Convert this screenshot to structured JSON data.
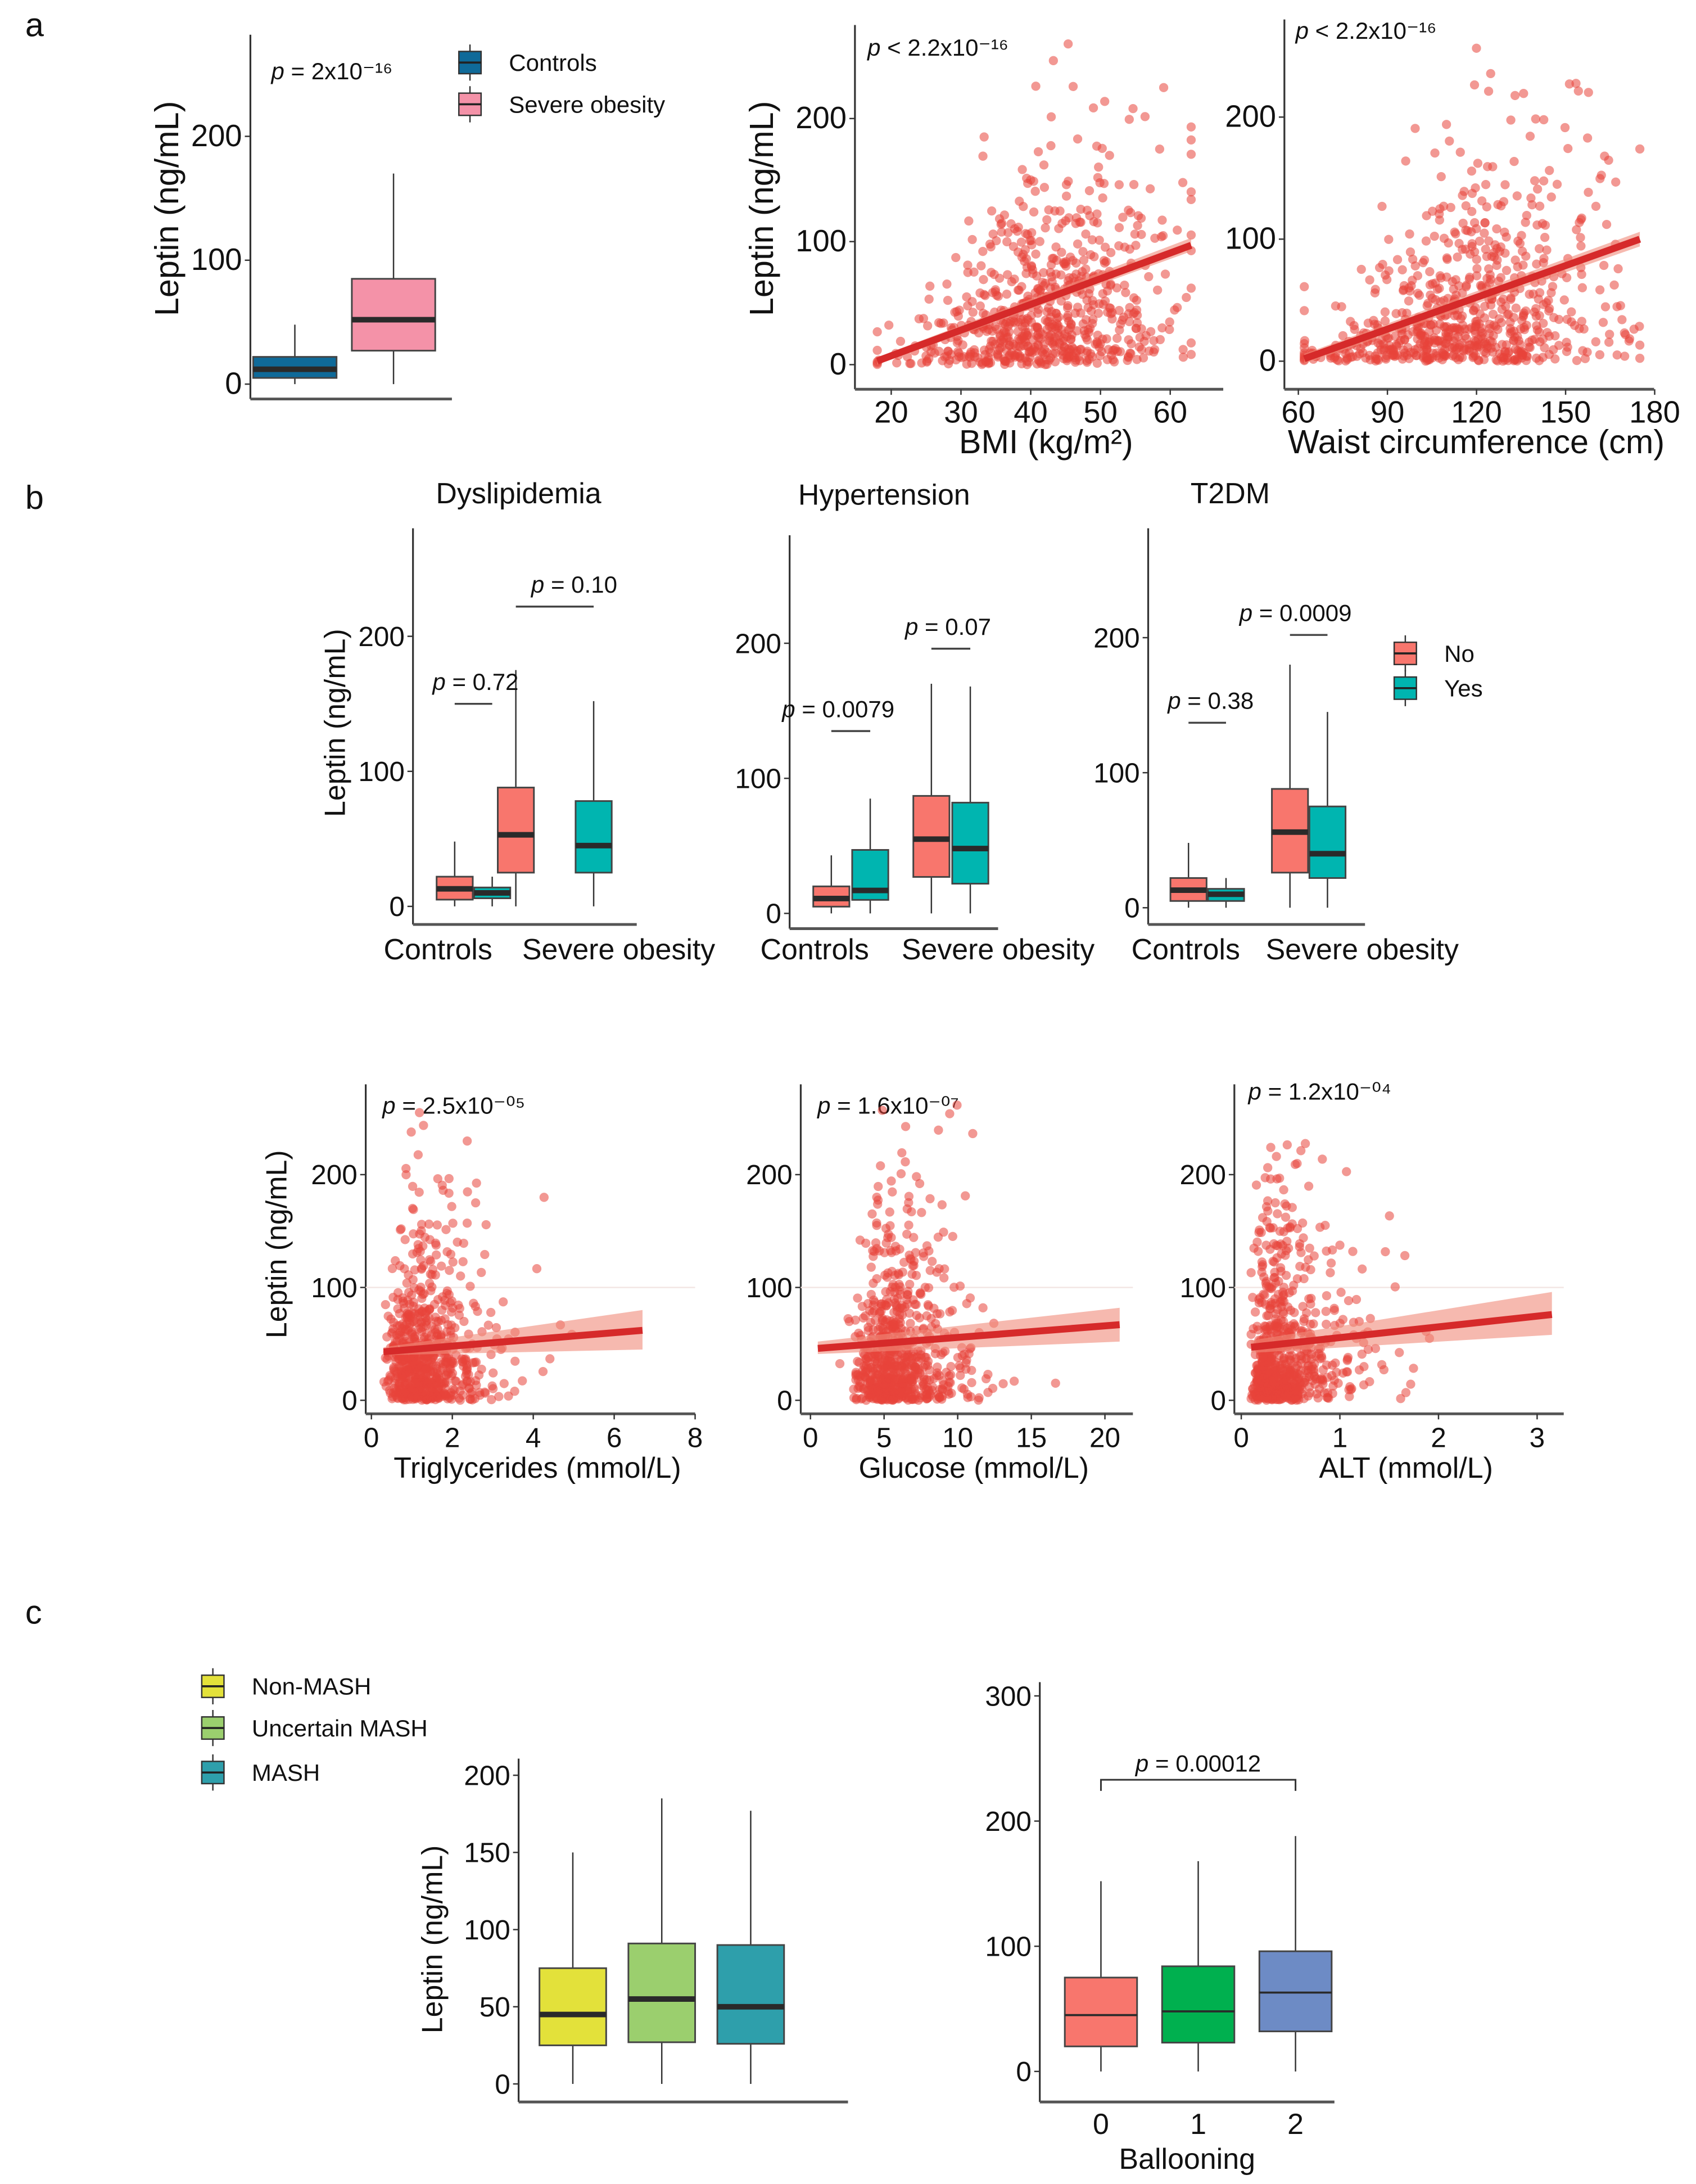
{
  "panel_labels": [
    "a",
    "b",
    "c"
  ],
  "chart_data": [
    {
      "panel": "a",
      "type": "box",
      "ylabel": "Leptin (ng/mL)",
      "yticks": [
        0,
        100,
        200
      ],
      "ylim": [
        -12,
        282
      ],
      "annotation": {
        "p": "p",
        "text": " = 2x10⁻¹⁶"
      },
      "legend": [
        {
          "label": "Controls",
          "color": "#0F6A99"
        },
        {
          "label": "Severe obesity",
          "color": "#F492A8"
        }
      ],
      "boxes": [
        {
          "group": "Controls",
          "color": "#0F6A99",
          "q1": 5,
          "median": 12,
          "q3": 22,
          "whisker_low": 0,
          "whisker_high": 48
        },
        {
          "group": "Severe obesity",
          "color": "#F492A8",
          "q1": 27,
          "median": 52,
          "q3": 85,
          "whisker_low": 0,
          "whisker_high": 170
        }
      ]
    },
    {
      "panel": "a",
      "type": "scatter",
      "ylabel": "Leptin (ng/mL)",
      "xlabel": "BMI (kg/m²)",
      "xticks": [
        20,
        30,
        40,
        50,
        60
      ],
      "yticks": [
        0,
        100,
        200
      ],
      "xlim": [
        14.8,
        67.6
      ],
      "ylim": [
        -20,
        276
      ],
      "annotation": {
        "p": "p",
        "text": " < 2.2x10⁻¹⁶"
      },
      "fit": {
        "x": [
          18,
          63
        ],
        "y": [
          3,
          97
        ],
        "ci_low": [
          0,
          92
        ],
        "ci_high": [
          6,
          103
        ]
      },
      "point_color": "#E8443A"
    },
    {
      "panel": "a",
      "type": "scatter",
      "ylabel": "",
      "xlabel": "Waist circumference (cm)",
      "xticks": [
        60,
        90,
        120,
        150,
        180
      ],
      "yticks": [
        0,
        100,
        200
      ],
      "xlim": [
        55.3,
        179.8
      ],
      "ylim": [
        -23,
        280
      ],
      "annotation": {
        "p": "p",
        "text": " < 2.2x10⁻¹⁶"
      },
      "fit": {
        "x": [
          62,
          175
        ],
        "y": [
          2,
          100
        ],
        "ci_low": [
          -2,
          94
        ],
        "ci_high": [
          6,
          106
        ]
      },
      "point_color": "#E8443A"
    },
    {
      "panel": "b",
      "type": "box",
      "title": "Dyslipidemia",
      "ylabel": "Leptin (ng/mL)",
      "yticks": [
        0,
        100,
        200
      ],
      "ylim": [
        -13.4,
        280
      ],
      "categories": [
        "Controls",
        "Severe obesity"
      ],
      "boxes": [
        {
          "category": "Controls",
          "subgroup": "No",
          "color": "#F8766D",
          "q1": 5,
          "median": 13,
          "q3": 22,
          "whisker_low": 0,
          "whisker_high": 48
        },
        {
          "category": "Controls",
          "subgroup": "Yes",
          "color": "#00B5B0",
          "q1": 6,
          "median": 10,
          "q3": 14,
          "whisker_low": 0,
          "whisker_high": 22
        },
        {
          "category": "Severe obesity",
          "subgroup": "No",
          "color": "#F8766D",
          "q1": 25,
          "median": 53,
          "q3": 88,
          "whisker_low": 0,
          "whisker_high": 175
        },
        {
          "category": "Severe obesity",
          "subgroup": "Yes",
          "color": "#00B5B0",
          "q1": 25,
          "median": 45,
          "q3": 78,
          "whisker_low": 0,
          "whisker_high": 152
        }
      ],
      "comparisons": [
        {
          "category": "Controls",
          "p": "p",
          "text": " = 0.72",
          "y": 150
        },
        {
          "category": "Severe obesity",
          "p": "p",
          "text": " = 0.10",
          "y": 222
        }
      ]
    },
    {
      "panel": "b",
      "type": "box",
      "title": "Hypertension",
      "ylabel": "",
      "yticks": [
        0,
        100,
        200
      ],
      "ylim": [
        -11.3,
        280
      ],
      "categories": [
        "Controls",
        "Severe obesity"
      ],
      "boxes": [
        {
          "category": "Controls",
          "subgroup": "No",
          "color": "#F8766D",
          "q1": 5,
          "median": 11,
          "q3": 20,
          "whisker_low": 0,
          "whisker_high": 43
        },
        {
          "category": "Controls",
          "subgroup": "Yes",
          "color": "#00B5B0",
          "q1": 10,
          "median": 17,
          "q3": 47,
          "whisker_low": 0,
          "whisker_high": 85
        },
        {
          "category": "Severe obesity",
          "subgroup": "No",
          "color": "#F8766D",
          "q1": 27,
          "median": 55,
          "q3": 87,
          "whisker_low": 0,
          "whisker_high": 170
        },
        {
          "category": "Severe obesity",
          "subgroup": "Yes",
          "color": "#00B5B0",
          "q1": 22,
          "median": 48,
          "q3": 82,
          "whisker_low": 0,
          "whisker_high": 168
        }
      ],
      "comparisons": [
        {
          "category": "Controls",
          "p": "p",
          "text": " = 0.0079",
          "y": 135
        },
        {
          "category": "Severe obesity",
          "p": "p",
          "text": " = 0.07",
          "y": 196
        }
      ]
    },
    {
      "panel": "b",
      "type": "box",
      "title": "T2DM",
      "ylabel": "",
      "yticks": [
        0,
        100,
        200
      ],
      "ylim": [
        -12.4,
        281
      ],
      "categories": [
        "Controls",
        "Severe obesity"
      ],
      "legend": [
        {
          "label": "No",
          "color": "#F8766D"
        },
        {
          "label": "Yes",
          "color": "#00B5B0"
        }
      ],
      "boxes": [
        {
          "category": "Controls",
          "subgroup": "No",
          "color": "#F8766D",
          "q1": 5,
          "median": 13,
          "q3": 22,
          "whisker_low": 0,
          "whisker_high": 48
        },
        {
          "category": "Controls",
          "subgroup": "Yes",
          "color": "#00B5B0",
          "q1": 5,
          "median": 10,
          "q3": 14,
          "whisker_low": 0,
          "whisker_high": 22
        },
        {
          "category": "Severe obesity",
          "subgroup": "No",
          "color": "#F8766D",
          "q1": 26,
          "median": 56,
          "q3": 88,
          "whisker_low": 0,
          "whisker_high": 180
        },
        {
          "category": "Severe obesity",
          "subgroup": "Yes",
          "color": "#00B5B0",
          "q1": 22,
          "median": 40,
          "q3": 75,
          "whisker_low": 0,
          "whisker_high": 145
        }
      ],
      "comparisons": [
        {
          "category": "Controls",
          "p": "p",
          "text": " = 0.38",
          "y": 137
        },
        {
          "category": "Severe obesity",
          "p": "p",
          "text": " = 0.0009",
          "y": 202
        }
      ]
    },
    {
      "panel": "b",
      "type": "scatter",
      "ylabel": "Leptin (ng/mL)",
      "xlabel": "Triglycerides (mmol/L)",
      "xticks": [
        0,
        2,
        4,
        6,
        8
      ],
      "yticks": [
        0,
        100,
        200
      ],
      "xlim": [
        -0.14,
        8
      ],
      "ylim": [
        -12,
        280
      ],
      "annotation": {
        "p": "p",
        "text": " = 2.5x10⁻⁰⁵"
      },
      "fit": {
        "x": [
          0.3,
          6.7
        ],
        "y": [
          43,
          62
        ],
        "ci_low": [
          40,
          45
        ],
        "ci_high": [
          47,
          80
        ]
      },
      "point_color": "#E8443A"
    },
    {
      "panel": "b",
      "type": "scatter",
      "ylabel": "",
      "xlabel": "Glucose (mmol/L)",
      "xticks": [
        0,
        5,
        10,
        15,
        20
      ],
      "yticks": [
        0,
        100,
        200
      ],
      "xlim": [
        -0.66,
        21.9
      ],
      "ylim": [
        -12,
        280
      ],
      "annotation": {
        "p": "p",
        "text": " = 1.6x10⁻⁰⁷"
      },
      "fit": {
        "x": [
          0.5,
          21
        ],
        "y": [
          46,
          67
        ],
        "ci_low": [
          41,
          52
        ],
        "ci_high": [
          52,
          82
        ]
      },
      "point_color": "#E8443A"
    },
    {
      "panel": "b",
      "type": "scatter",
      "ylabel": "",
      "xlabel": "ALT (mmol/L)",
      "xticks": [
        0,
        1,
        2,
        3
      ],
      "yticks": [
        0,
        100,
        200
      ],
      "xlim": [
        -0.07,
        3.27
      ],
      "ylim": [
        -12,
        280
      ],
      "annotation": {
        "p": "p",
        "text": " = 1.2x10⁻⁰⁴"
      },
      "fit": {
        "x": [
          0.1,
          3.15
        ],
        "y": [
          47,
          76
        ],
        "ci_low": [
          42,
          58
        ],
        "ci_high": [
          53,
          96
        ]
      },
      "point_color": "#E8443A"
    },
    {
      "panel": "c",
      "type": "box",
      "ylabel": "Leptin (ng/mL)",
      "yticks": [
        0,
        50,
        100,
        150,
        200
      ],
      "ylim": [
        -11.7,
        210.8
      ],
      "legend": [
        {
          "label": "Non-MASH",
          "color": "#E3E13A"
        },
        {
          "label": "Uncertain MASH",
          "color": "#9BCF6E"
        },
        {
          "label": "MASH",
          "color": "#2E9FAB"
        }
      ],
      "boxes": [
        {
          "group": "Non-MASH",
          "color": "#E3E13A",
          "q1": 25,
          "median": 45,
          "q3": 75,
          "whisker_low": 0,
          "whisker_high": 150
        },
        {
          "group": "Uncertain MASH",
          "color": "#9BCF6E",
          "q1": 27,
          "median": 55,
          "q3": 91,
          "whisker_low": 0,
          "whisker_high": 185
        },
        {
          "group": "MASH",
          "color": "#2E9FAB",
          "q1": 26,
          "median": 50,
          "q3": 90,
          "whisker_low": 0,
          "whisker_high": 177
        }
      ]
    },
    {
      "panel": "c",
      "type": "box",
      "ylabel": "",
      "xlabel": "Ballooning",
      "yticks": [
        0,
        100,
        200,
        300
      ],
      "ylim": [
        -24.4,
        311
      ],
      "categories": [
        "0",
        "1",
        "2"
      ],
      "boxes": [
        {
          "group": "0",
          "color": "#F8766D",
          "q1": 20,
          "median": 45,
          "q3": 75,
          "whisker_low": 0,
          "whisker_high": 152
        },
        {
          "group": "1",
          "color": "#00B04F",
          "q1": 23,
          "median": 48,
          "q3": 84,
          "whisker_low": 0,
          "whisker_high": 168
        },
        {
          "group": "2",
          "color": "#6D8BC5",
          "q1": 32,
          "median": 63,
          "q3": 96,
          "whisker_low": 0,
          "whisker_high": 188
        }
      ],
      "comparisons": [
        {
          "between": [
            "0",
            "2"
          ],
          "p": "p",
          "text": " = 0.00012",
          "y": 233
        }
      ]
    }
  ]
}
